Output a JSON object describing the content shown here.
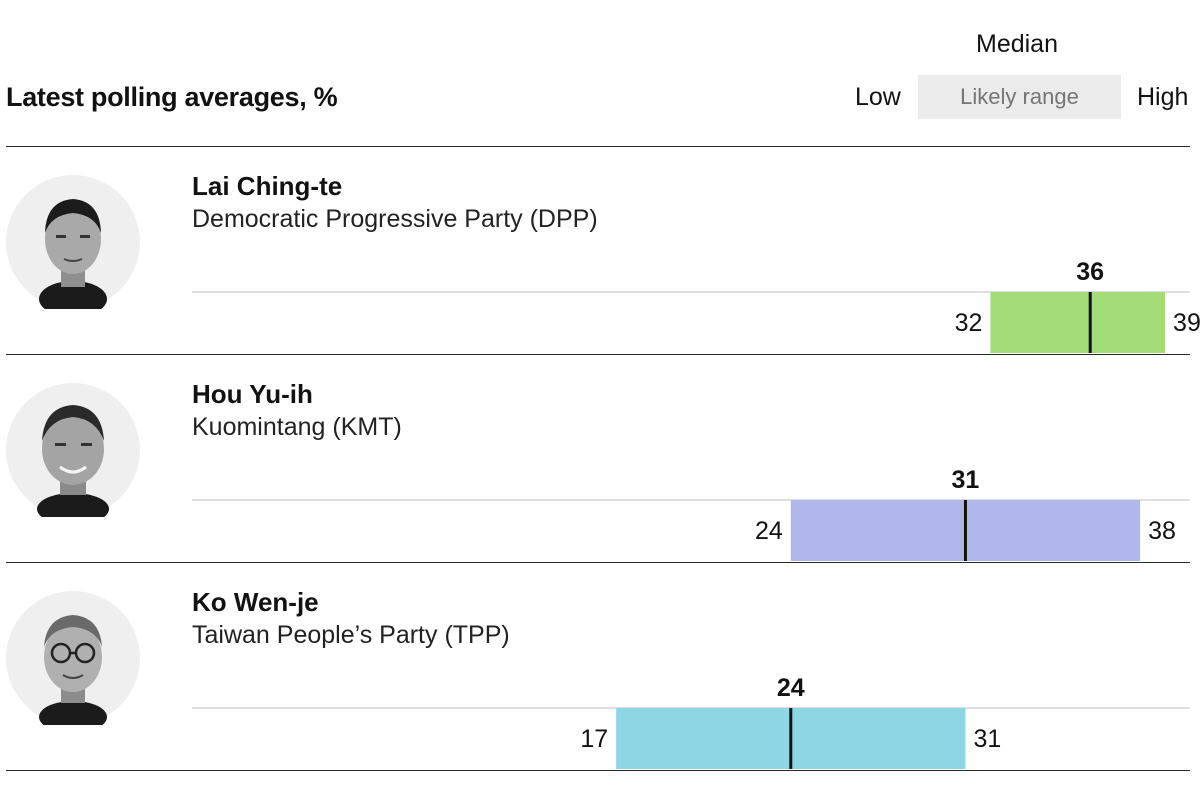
{
  "chart_data": {
    "type": "bar",
    "title": "Latest polling averages, %",
    "legend": {
      "median": "Median",
      "low": "Low",
      "range": "Likely range",
      "high": "High"
    },
    "xlim": [
      0,
      40
    ],
    "candidates": [
      {
        "name": "Lai Ching-te",
        "party": "Democratic Progressive Party (DPP)",
        "median": 36,
        "low": 32,
        "high": 39,
        "color": "#a3dc78"
      },
      {
        "name": "Hou Yu-ih",
        "party": "Kuomintang (KMT)",
        "median": 31,
        "low": 24,
        "high": 38,
        "color": "#b0b7ea"
      },
      {
        "name": "Ko Wen-je",
        "party": "Taiwan People’s Party (TPP)",
        "median": 24,
        "low": 17,
        "high": 31,
        "color": "#8ed6e3"
      }
    ]
  }
}
